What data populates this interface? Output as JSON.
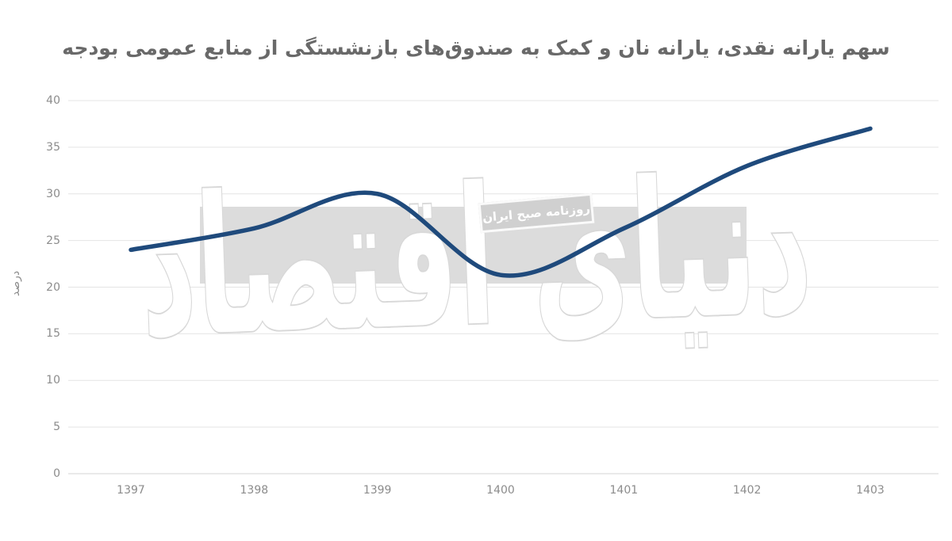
{
  "page": {
    "background": "#ffffff"
  },
  "watermark": {
    "logo_text": "دنیای اقتصاد",
    "badge_text": "روزنامه صبح ایران"
  },
  "chart_data": {
    "type": "line",
    "title": "سهم یارانه نقدی، یارانه نان و کمک به صندوق‌های بازنشستگی از منابع عمومی بودجه",
    "categories": [
      "1397",
      "1398",
      "1399",
      "1400",
      "1401",
      "1402",
      "1403"
    ],
    "values": [
      24,
      26.3,
      30,
      21.3,
      26.3,
      33,
      37
    ],
    "xlabel": "",
    "ylabel": "درصد",
    "ylim": [
      0,
      40
    ],
    "yticks": [
      0,
      5,
      10,
      15,
      20,
      25,
      30,
      35,
      40
    ],
    "grid": true,
    "legend": false,
    "smooth": true,
    "line_color": "#1f4a7c"
  },
  "colors": {
    "line": "#1f4a7c",
    "grid": "#e4e4e4",
    "axis_line": "#d6d6d6",
    "title_text": "#696969",
    "tick_text": "#8c8c8c",
    "band": "#dcdcdc",
    "badge_bg": "#d0d0d0",
    "badge_border": "#fafafa",
    "badge_text_color": "#ffffff",
    "logo_fill": "#ffffff",
    "logo_stroke": "#d8d8d8"
  }
}
